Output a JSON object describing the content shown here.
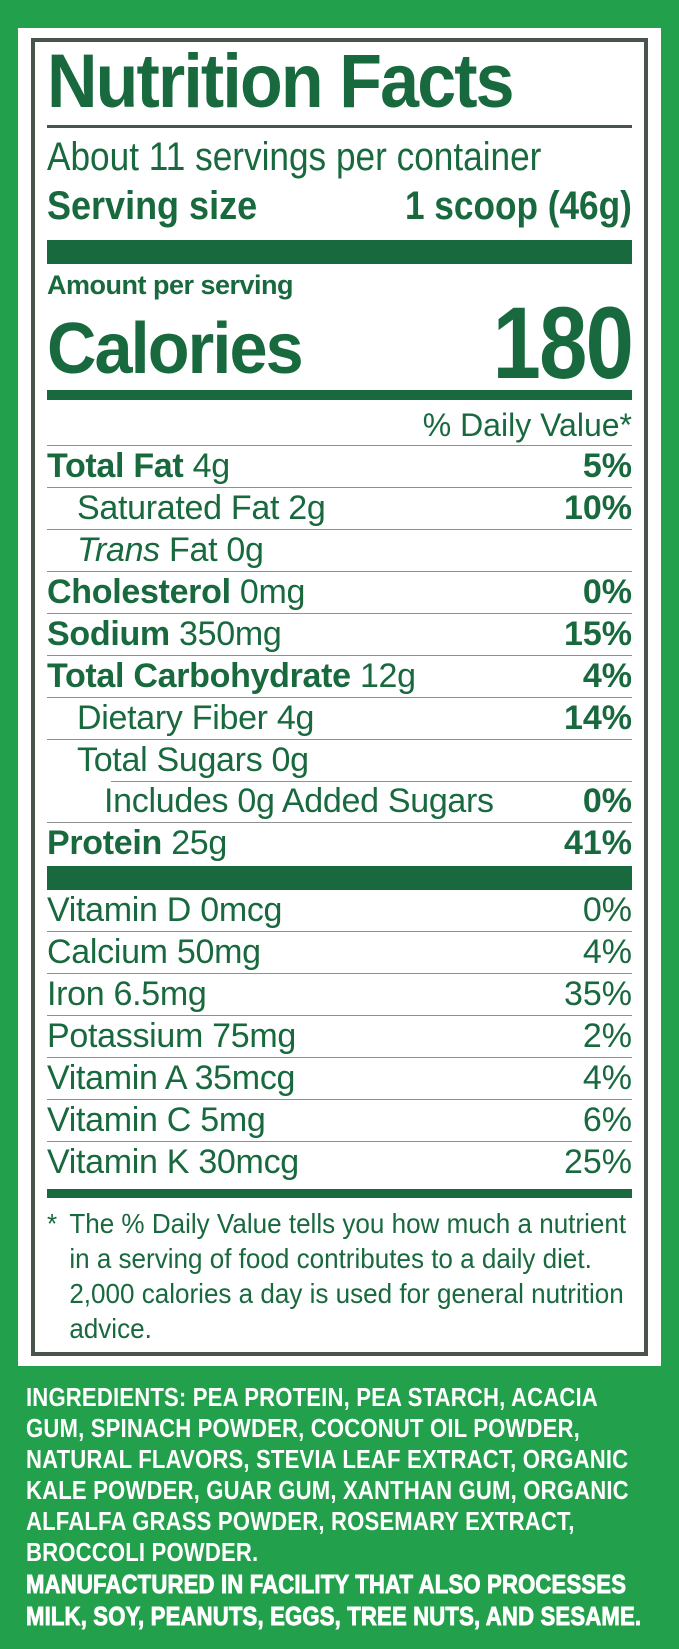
{
  "colors": {
    "background_green": "#23A04B",
    "text_green": "#19693E",
    "panel_white": "#FFFFFF",
    "ingredients_text": "#FFFFFF"
  },
  "label": {
    "title": "Nutrition Facts",
    "servings_per_container": "About 11 servings per container",
    "serving_size_label": "Serving size",
    "serving_size_value": "1 scoop (46g)",
    "amount_per_serving": "Amount per serving",
    "calories_label": "Calories",
    "calories_value": "180",
    "daily_value_header": "% Daily Value*",
    "rows": [
      {
        "bold": "Total Fat",
        "rest": "4g",
        "dv": "5%"
      },
      {
        "rest": "Saturated Fat 2g",
        "dv": "10%"
      },
      {
        "italic": "Trans",
        "rest": "Fat 0g",
        "dv": ""
      },
      {
        "bold": "Cholesterol",
        "rest": "0mg",
        "dv": "0%"
      },
      {
        "bold": "Sodium",
        "rest": "350mg",
        "dv": "15%"
      },
      {
        "bold": "Total Carbohydrate",
        "rest": "12g",
        "dv": "4%"
      },
      {
        "rest": "Dietary Fiber 4g",
        "dv": "14%"
      },
      {
        "rest": "Total Sugars 0g",
        "dv": ""
      },
      {
        "rest": "Includes 0g Added Sugars",
        "dv": "0%"
      },
      {
        "bold": "Protein",
        "rest": "25g",
        "dv": "41%"
      }
    ],
    "vitamins": [
      {
        "rest": "Vitamin D 0mcg",
        "dv": "0%"
      },
      {
        "rest": "Calcium 50mg",
        "dv": "4%"
      },
      {
        "rest": "Iron 6.5mg",
        "dv": "35%"
      },
      {
        "rest": "Potassium 75mg",
        "dv": "2%"
      },
      {
        "rest": "Vitamin A 35mcg",
        "dv": "4%"
      },
      {
        "rest": "Vitamin C 5mg",
        "dv": "6%"
      },
      {
        "rest": "Vitamin K 30mcg",
        "dv": "25%"
      }
    ],
    "footnote_marker": "*",
    "footnote_text": "The % Daily Value tells you how much a nutrient in a serving of food contributes to a daily diet. 2,000 calories a day is used for general nutrition advice."
  },
  "ingredients": {
    "label": "INGREDIENTS:",
    "text": "PEA PROTEIN, PEA STARCH, ACACIA GUM, SPINACH POWDER, COCONUT OIL POWDER, NATURAL FLAVORS, STEVIA LEAF EXTRACT, ORGANIC KALE POWDER, GUAR GUM, XANTHAN GUM, ORGANIC ALFALFA GRASS POWDER, ROSEMARY EXTRACT, BROCCOLI POWDER.",
    "allergen": "MANUFACTURED IN FACILITY THAT ALSO PROCESSES MILK, SOY, PEANUTS, EGGS, TREE NUTS, AND SESAME."
  }
}
